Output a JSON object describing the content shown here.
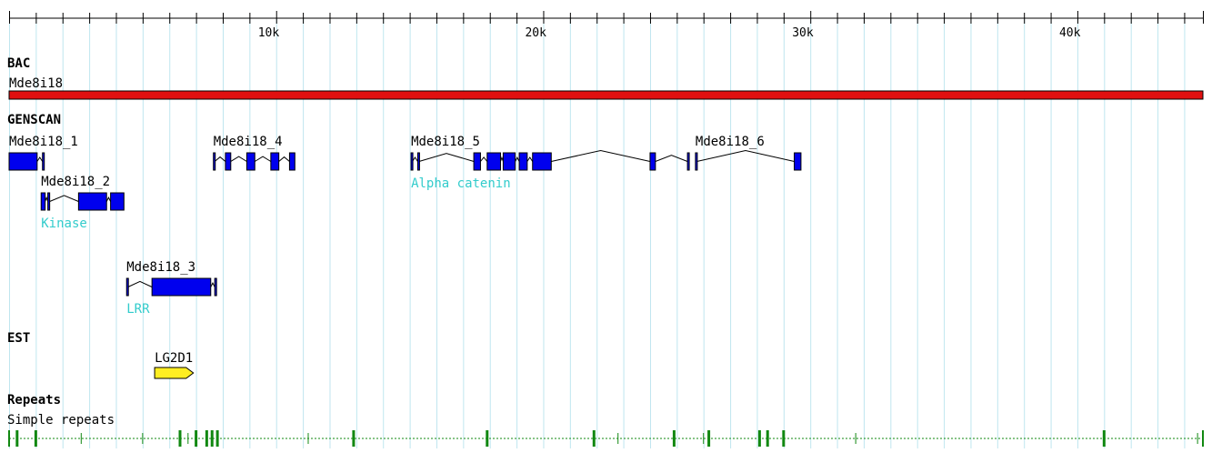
{
  "viewer": {
    "units": "bp",
    "range": [
      0,
      44700
    ],
    "ticks": {
      "minor_step": 1000,
      "labels": [
        {
          "pos": 10000,
          "text": "10k"
        },
        {
          "pos": 20000,
          "text": "20k"
        },
        {
          "pos": 30000,
          "text": "30k"
        },
        {
          "pos": 40000,
          "text": "40k"
        }
      ]
    }
  },
  "colors": {
    "bac_fill": "#e01010",
    "exon_fill": "#0000ee",
    "domain_text": "#33cccc",
    "est_fill": "#ffee22",
    "repeat_color": "#118811",
    "gridline": "#bfe6ef",
    "text": "#000000"
  },
  "tracks": {
    "bac": {
      "title": "BAC",
      "clone": {
        "name": "Mde8i18",
        "start": 0,
        "end": 44700
      }
    },
    "genscan": {
      "title": "GENSCAN",
      "genes": [
        {
          "name": "Mde8i18_1",
          "domain": "",
          "row": 0,
          "exons": [
            [
              0,
              1050
            ],
            [
              1250,
              1300
            ]
          ]
        },
        {
          "name": "Mde8i18_2",
          "domain": "Kinase",
          "row": 1,
          "exons": [
            [
              1200,
              1350
            ],
            [
              1450,
              1520
            ],
            [
              2600,
              3650
            ],
            [
              3800,
              4300
            ]
          ]
        },
        {
          "name": "Mde8i18_3",
          "domain": "LRR",
          "row": 2,
          "exons": [
            [
              4400,
              4450
            ],
            [
              5350,
              7550
            ],
            [
              7700,
              7750
            ]
          ]
        },
        {
          "name": "Mde8i18_4",
          "domain": "",
          "row": 0,
          "exons": [
            [
              7650,
              7700
            ],
            [
              8100,
              8300
            ],
            [
              8900,
              9200
            ],
            [
              9800,
              10100
            ],
            [
              10500,
              10700
            ]
          ]
        },
        {
          "name": "Mde8i18_5",
          "domain": "Alpha catenin",
          "row": 0,
          "exons": [
            [
              15050,
              15100
            ],
            [
              15300,
              15350
            ],
            [
              17400,
              17650
            ],
            [
              17900,
              18400
            ],
            [
              18500,
              18950
            ],
            [
              19100,
              19400
            ],
            [
              19600,
              20300
            ],
            [
              24000,
              24200
            ],
            [
              25400,
              25450
            ]
          ]
        },
        {
          "name": "Mde8i18_6",
          "domain": "",
          "row": 0,
          "exons": [
            [
              25700,
              25750
            ],
            [
              29400,
              29650
            ]
          ]
        }
      ]
    },
    "est": {
      "title": "EST",
      "items": [
        {
          "name": "LG2D1",
          "start": 5450,
          "end": 6900
        }
      ]
    },
    "repeats": {
      "title": "Repeats",
      "label": "Simple repeats",
      "start": 0,
      "end": 44700,
      "major": [
        300,
        1000,
        6400,
        7000,
        7400,
        7600,
        7800,
        12900,
        17900,
        21900,
        24900,
        26200,
        28100,
        28400,
        29000,
        41000
      ],
      "minor": [
        2700,
        5000,
        6700,
        11200,
        22800,
        26000,
        31700,
        44500
      ]
    }
  }
}
